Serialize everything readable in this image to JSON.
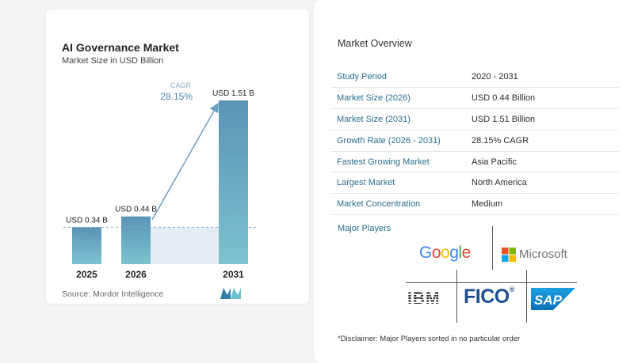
{
  "chart_data": {
    "type": "bar",
    "title": "AI Governance Market",
    "subtitle": "Market Size in USD Billion",
    "categories": [
      "2025",
      "2026",
      "2031"
    ],
    "values": [
      0.34,
      0.44,
      1.51
    ],
    "value_labels": [
      "USD 0.34 B",
      "USD 0.44 B",
      "USD 1.51 B"
    ],
    "cagr_label": "CAGR",
    "cagr_value": "28.15%",
    "grid": false,
    "colors": {
      "bar_top": "#5b93b7",
      "bar_bottom": "#7cc2cf",
      "arrow": "#6b9fc2",
      "shade": "#e4ecf3"
    }
  },
  "source": "Source:  Mordor Intelligence",
  "overview": {
    "title": "Market Overview",
    "rows": [
      {
        "label": "Study Period",
        "value": "2020 - 2031"
      },
      {
        "label": "Market Size (2026)",
        "value": "USD 0.44 Billion"
      },
      {
        "label": "Market Size (2031)",
        "value": "USD 1.51 Billion"
      },
      {
        "label": "Growth Rate (2026 - 2031)",
        "value": "28.15% CAGR"
      },
      {
        "label": "Fastest Growing Market",
        "value": "Asia Pacific"
      },
      {
        "label": "Largest Market",
        "value": "North America"
      },
      {
        "label": "Market Concentration",
        "value": "Medium"
      }
    ]
  },
  "major_players": {
    "title": "Major Players",
    "logos": [
      "Google",
      "Microsoft",
      "IBM",
      "FICO",
      "SAP"
    ]
  },
  "disclaimer": "*Disclaimer: Major Players sorted in no particular order"
}
